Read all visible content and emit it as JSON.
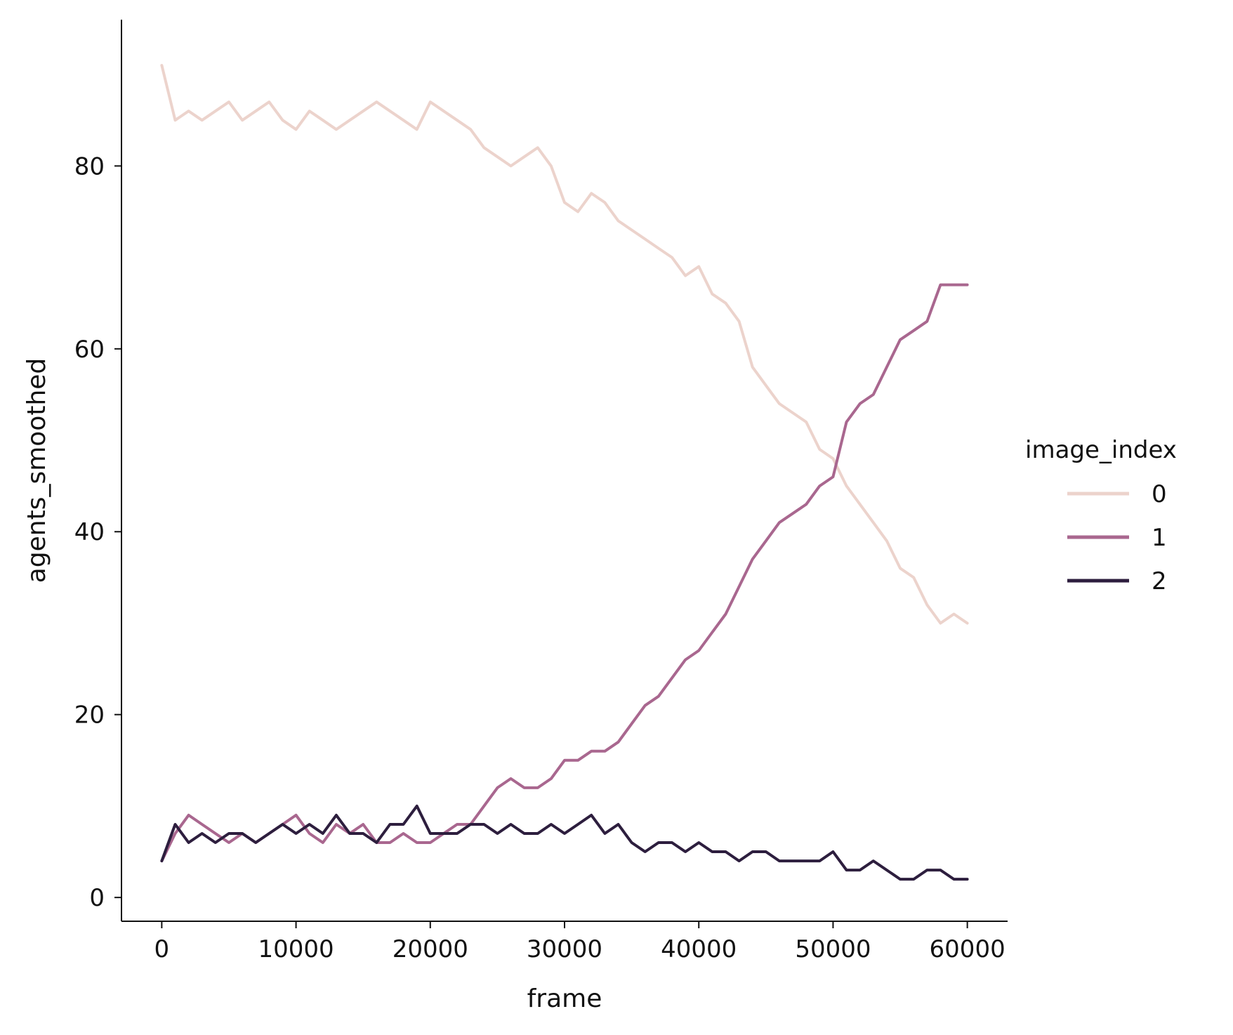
{
  "chart_data": {
    "type": "line",
    "xlabel": "frame",
    "ylabel": "agents_smoothed",
    "xlim": [
      -3000,
      63000
    ],
    "ylim": [
      -2.6,
      96
    ],
    "xticks": [
      0,
      10000,
      20000,
      30000,
      40000,
      50000,
      60000
    ],
    "yticks": [
      0,
      20,
      40,
      60,
      80
    ],
    "grid": false,
    "legend": {
      "title": "image_index",
      "position": "right"
    },
    "series": [
      {
        "name": "0",
        "color": "#ecd3cc",
        "x": [
          0,
          1000,
          2000,
          3000,
          4000,
          5000,
          6000,
          7000,
          8000,
          9000,
          10000,
          11000,
          12000,
          13000,
          14000,
          15000,
          16000,
          17000,
          18000,
          19000,
          20000,
          21000,
          22000,
          23000,
          24000,
          25000,
          26000,
          27000,
          28000,
          29000,
          30000,
          31000,
          32000,
          33000,
          34000,
          35000,
          36000,
          37000,
          38000,
          39000,
          40000,
          41000,
          42000,
          43000,
          44000,
          45000,
          46000,
          47000,
          48000,
          49000,
          50000,
          51000,
          52000,
          53000,
          54000,
          55000,
          56000,
          57000,
          58000,
          59000,
          60000
        ],
        "values": [
          91,
          85,
          86,
          85,
          86,
          87,
          85,
          86,
          87,
          85,
          84,
          86,
          85,
          84,
          85,
          86,
          87,
          86,
          85,
          84,
          87,
          86,
          85,
          84,
          82,
          81,
          80,
          81,
          82,
          80,
          76,
          75,
          77,
          76,
          74,
          73,
          72,
          71,
          70,
          68,
          69,
          66,
          65,
          63,
          58,
          56,
          54,
          53,
          52,
          49,
          48,
          45,
          43,
          41,
          39,
          36,
          35,
          32,
          30,
          31,
          30
        ]
      },
      {
        "name": "1",
        "color": "#a9678f",
        "x": [
          0,
          1000,
          2000,
          3000,
          4000,
          5000,
          6000,
          7000,
          8000,
          9000,
          10000,
          11000,
          12000,
          13000,
          14000,
          15000,
          16000,
          17000,
          18000,
          19000,
          20000,
          21000,
          22000,
          23000,
          24000,
          25000,
          26000,
          27000,
          28000,
          29000,
          30000,
          31000,
          32000,
          33000,
          34000,
          35000,
          36000,
          37000,
          38000,
          39000,
          40000,
          41000,
          42000,
          43000,
          44000,
          45000,
          46000,
          47000,
          48000,
          49000,
          50000,
          51000,
          52000,
          53000,
          54000,
          55000,
          56000,
          57000,
          58000,
          59000,
          60000
        ],
        "values": [
          4,
          7,
          9,
          8,
          7,
          6,
          7,
          6,
          7,
          8,
          9,
          7,
          6,
          8,
          7,
          8,
          6,
          6,
          7,
          6,
          6,
          7,
          8,
          8,
          10,
          12,
          13,
          12,
          12,
          13,
          15,
          15,
          16,
          16,
          17,
          19,
          21,
          22,
          24,
          26,
          27,
          29,
          31,
          34,
          37,
          39,
          41,
          42,
          43,
          45,
          46,
          52,
          54,
          55,
          58,
          61,
          62,
          63,
          67,
          67,
          67
        ]
      },
      {
        "name": "2",
        "color": "#2d1e3e",
        "x": [
          0,
          1000,
          2000,
          3000,
          4000,
          5000,
          6000,
          7000,
          8000,
          9000,
          10000,
          11000,
          12000,
          13000,
          14000,
          15000,
          16000,
          17000,
          18000,
          19000,
          20000,
          21000,
          22000,
          23000,
          24000,
          25000,
          26000,
          27000,
          28000,
          29000,
          30000,
          31000,
          32000,
          33000,
          34000,
          35000,
          36000,
          37000,
          38000,
          39000,
          40000,
          41000,
          42000,
          43000,
          44000,
          45000,
          46000,
          47000,
          48000,
          49000,
          50000,
          51000,
          52000,
          53000,
          54000,
          55000,
          56000,
          57000,
          58000,
          59000,
          60000
        ],
        "values": [
          4,
          8,
          6,
          7,
          6,
          7,
          7,
          6,
          7,
          8,
          7,
          8,
          7,
          9,
          7,
          7,
          6,
          8,
          8,
          10,
          7,
          7,
          7,
          8,
          8,
          7,
          8,
          7,
          7,
          8,
          7,
          8,
          9,
          7,
          8,
          6,
          5,
          6,
          6,
          5,
          6,
          5,
          5,
          4,
          5,
          5,
          4,
          4,
          4,
          4,
          5,
          3,
          3,
          4,
          3,
          2,
          2,
          3,
          3,
          2,
          2
        ]
      }
    ]
  }
}
